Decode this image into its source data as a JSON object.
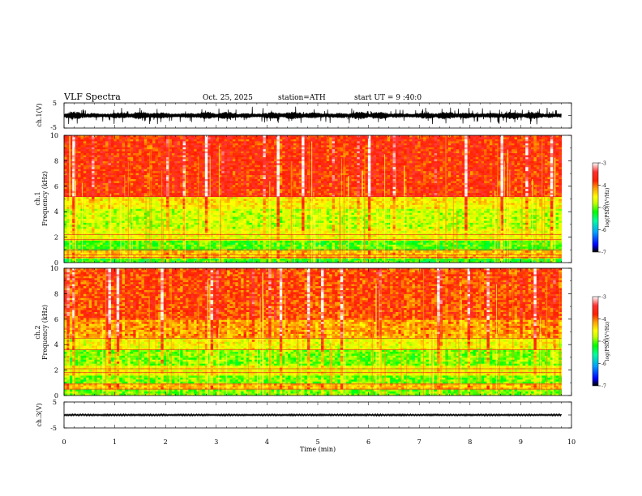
{
  "header": {
    "title": "VLF Spectra",
    "date": "Oct. 25, 2025",
    "station": "station=ATH",
    "start": "start UT = 9 :40:0"
  },
  "chart_data": [
    {
      "type": "line",
      "panel": "ch1-waveform",
      "ylabel": "ch.1(V)",
      "ylim": [
        -5,
        5
      ],
      "ytick_labels": [
        "5",
        "-5"
      ],
      "xlim": [
        0,
        10
      ],
      "data_end_min": 9.8,
      "baseline_amplitude_v": 1.6,
      "burst_amplitude_v": 3.8
    },
    {
      "type": "heatmap",
      "panel": "ch1-spectrogram",
      "ylabel": "ch.1\nFrequency (kHz)",
      "ylim": [
        0,
        10
      ],
      "ytick_labels": [
        "0",
        "2",
        "4",
        "6",
        "8",
        "10"
      ],
      "xlim": [
        0,
        10
      ],
      "data_end_min": 9.8,
      "colorbar": {
        "label": "log(PSD)(V²/Hz)",
        "range": [
          -7,
          -3
        ],
        "ticks": [
          "-3",
          "-4",
          "-5",
          "-6",
          "-7"
        ]
      },
      "bands_khz": [
        {
          "f0": 0.0,
          "f1": 0.3,
          "log_psd": -5.2
        },
        {
          "f0": 0.3,
          "f1": 0.9,
          "log_psd": -4.3
        },
        {
          "f0": 0.9,
          "f1": 1.7,
          "log_psd": -5.1
        },
        {
          "f0": 1.7,
          "f1": 2.6,
          "log_psd": -4.6
        },
        {
          "f0": 2.6,
          "f1": 4.2,
          "log_psd": -4.8
        },
        {
          "f0": 4.2,
          "f1": 5.2,
          "log_psd": -4.5
        },
        {
          "f0": 5.2,
          "f1": 10.0,
          "log_psd": -3.8
        }
      ],
      "tone_lines_khz": [
        0.4,
        0.6,
        1.0,
        1.8,
        2.2,
        5.2
      ]
    },
    {
      "type": "heatmap",
      "panel": "ch2-spectrogram",
      "ylabel": "ch.2\nFrequency (kHz)",
      "ylim": [
        0,
        10
      ],
      "ytick_labels": [
        "0",
        "2",
        "4",
        "6",
        "8",
        "10"
      ],
      "xlim": [
        0,
        10
      ],
      "data_end_min": 9.8,
      "colorbar": {
        "label": "log(PSD)(V²/Hz)",
        "range": [
          -7,
          -3
        ],
        "ticks": [
          "-3",
          "-4",
          "-5",
          "-6",
          "-7"
        ]
      },
      "bands_khz": [
        {
          "f0": 0.0,
          "f1": 0.4,
          "log_psd": -5.0
        },
        {
          "f0": 0.4,
          "f1": 0.9,
          "log_psd": -4.3
        },
        {
          "f0": 0.9,
          "f1": 1.6,
          "log_psd": -5.0
        },
        {
          "f0": 1.6,
          "f1": 2.4,
          "log_psd": -4.6
        },
        {
          "f0": 2.4,
          "f1": 3.6,
          "log_psd": -5.0
        },
        {
          "f0": 3.6,
          "f1": 4.6,
          "log_psd": -4.6
        },
        {
          "f0": 4.6,
          "f1": 6.0,
          "log_psd": -4.2
        },
        {
          "f0": 6.0,
          "f1": 10.0,
          "log_psd": -3.9
        }
      ],
      "tone_lines_khz": [
        0.5,
        0.9,
        1.8,
        2.1,
        3.6,
        4.5
      ]
    },
    {
      "type": "line",
      "panel": "ch3-waveform",
      "ylabel": "ch.3(V)",
      "ylim": [
        -5,
        5
      ],
      "ytick_labels": [
        "5",
        "-5"
      ],
      "xlim": [
        0,
        10
      ],
      "data_end_min": 9.8,
      "level_v": 0.0,
      "amplitude_v": 0.3,
      "xlabel": "Time (min)",
      "xtick_labels": [
        "0",
        "1",
        "2",
        "3",
        "4",
        "5",
        "6",
        "7",
        "8",
        "9",
        "10"
      ]
    }
  ]
}
